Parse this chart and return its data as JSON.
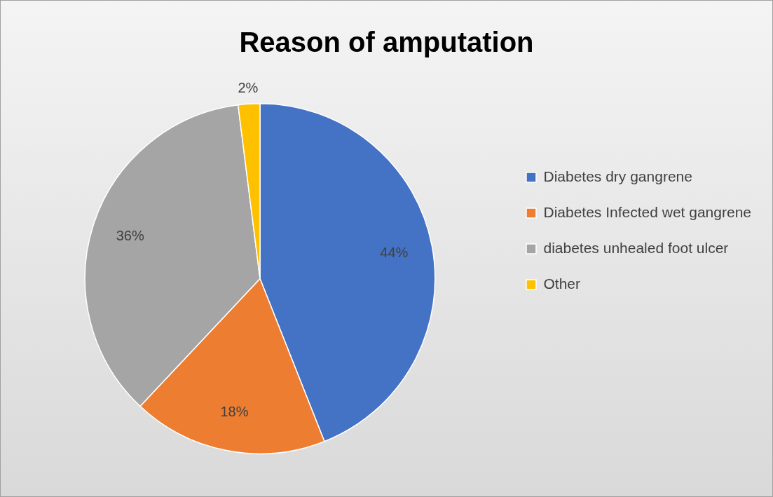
{
  "chart_data": {
    "type": "pie",
    "title": "Reason of amputation",
    "categories": [
      "Diabetes dry gangrene",
      "Diabetes Infected wet gangrene",
      "diabetes unhealed foot ulcer",
      "Other"
    ],
    "values": [
      44,
      18,
      36,
      2
    ],
    "colors": [
      "#4472c4",
      "#ed7d31",
      "#a5a5a5",
      "#ffc000"
    ],
    "value_labels": [
      "44%",
      "18%",
      "36%",
      "2%"
    ],
    "legend": "right"
  }
}
